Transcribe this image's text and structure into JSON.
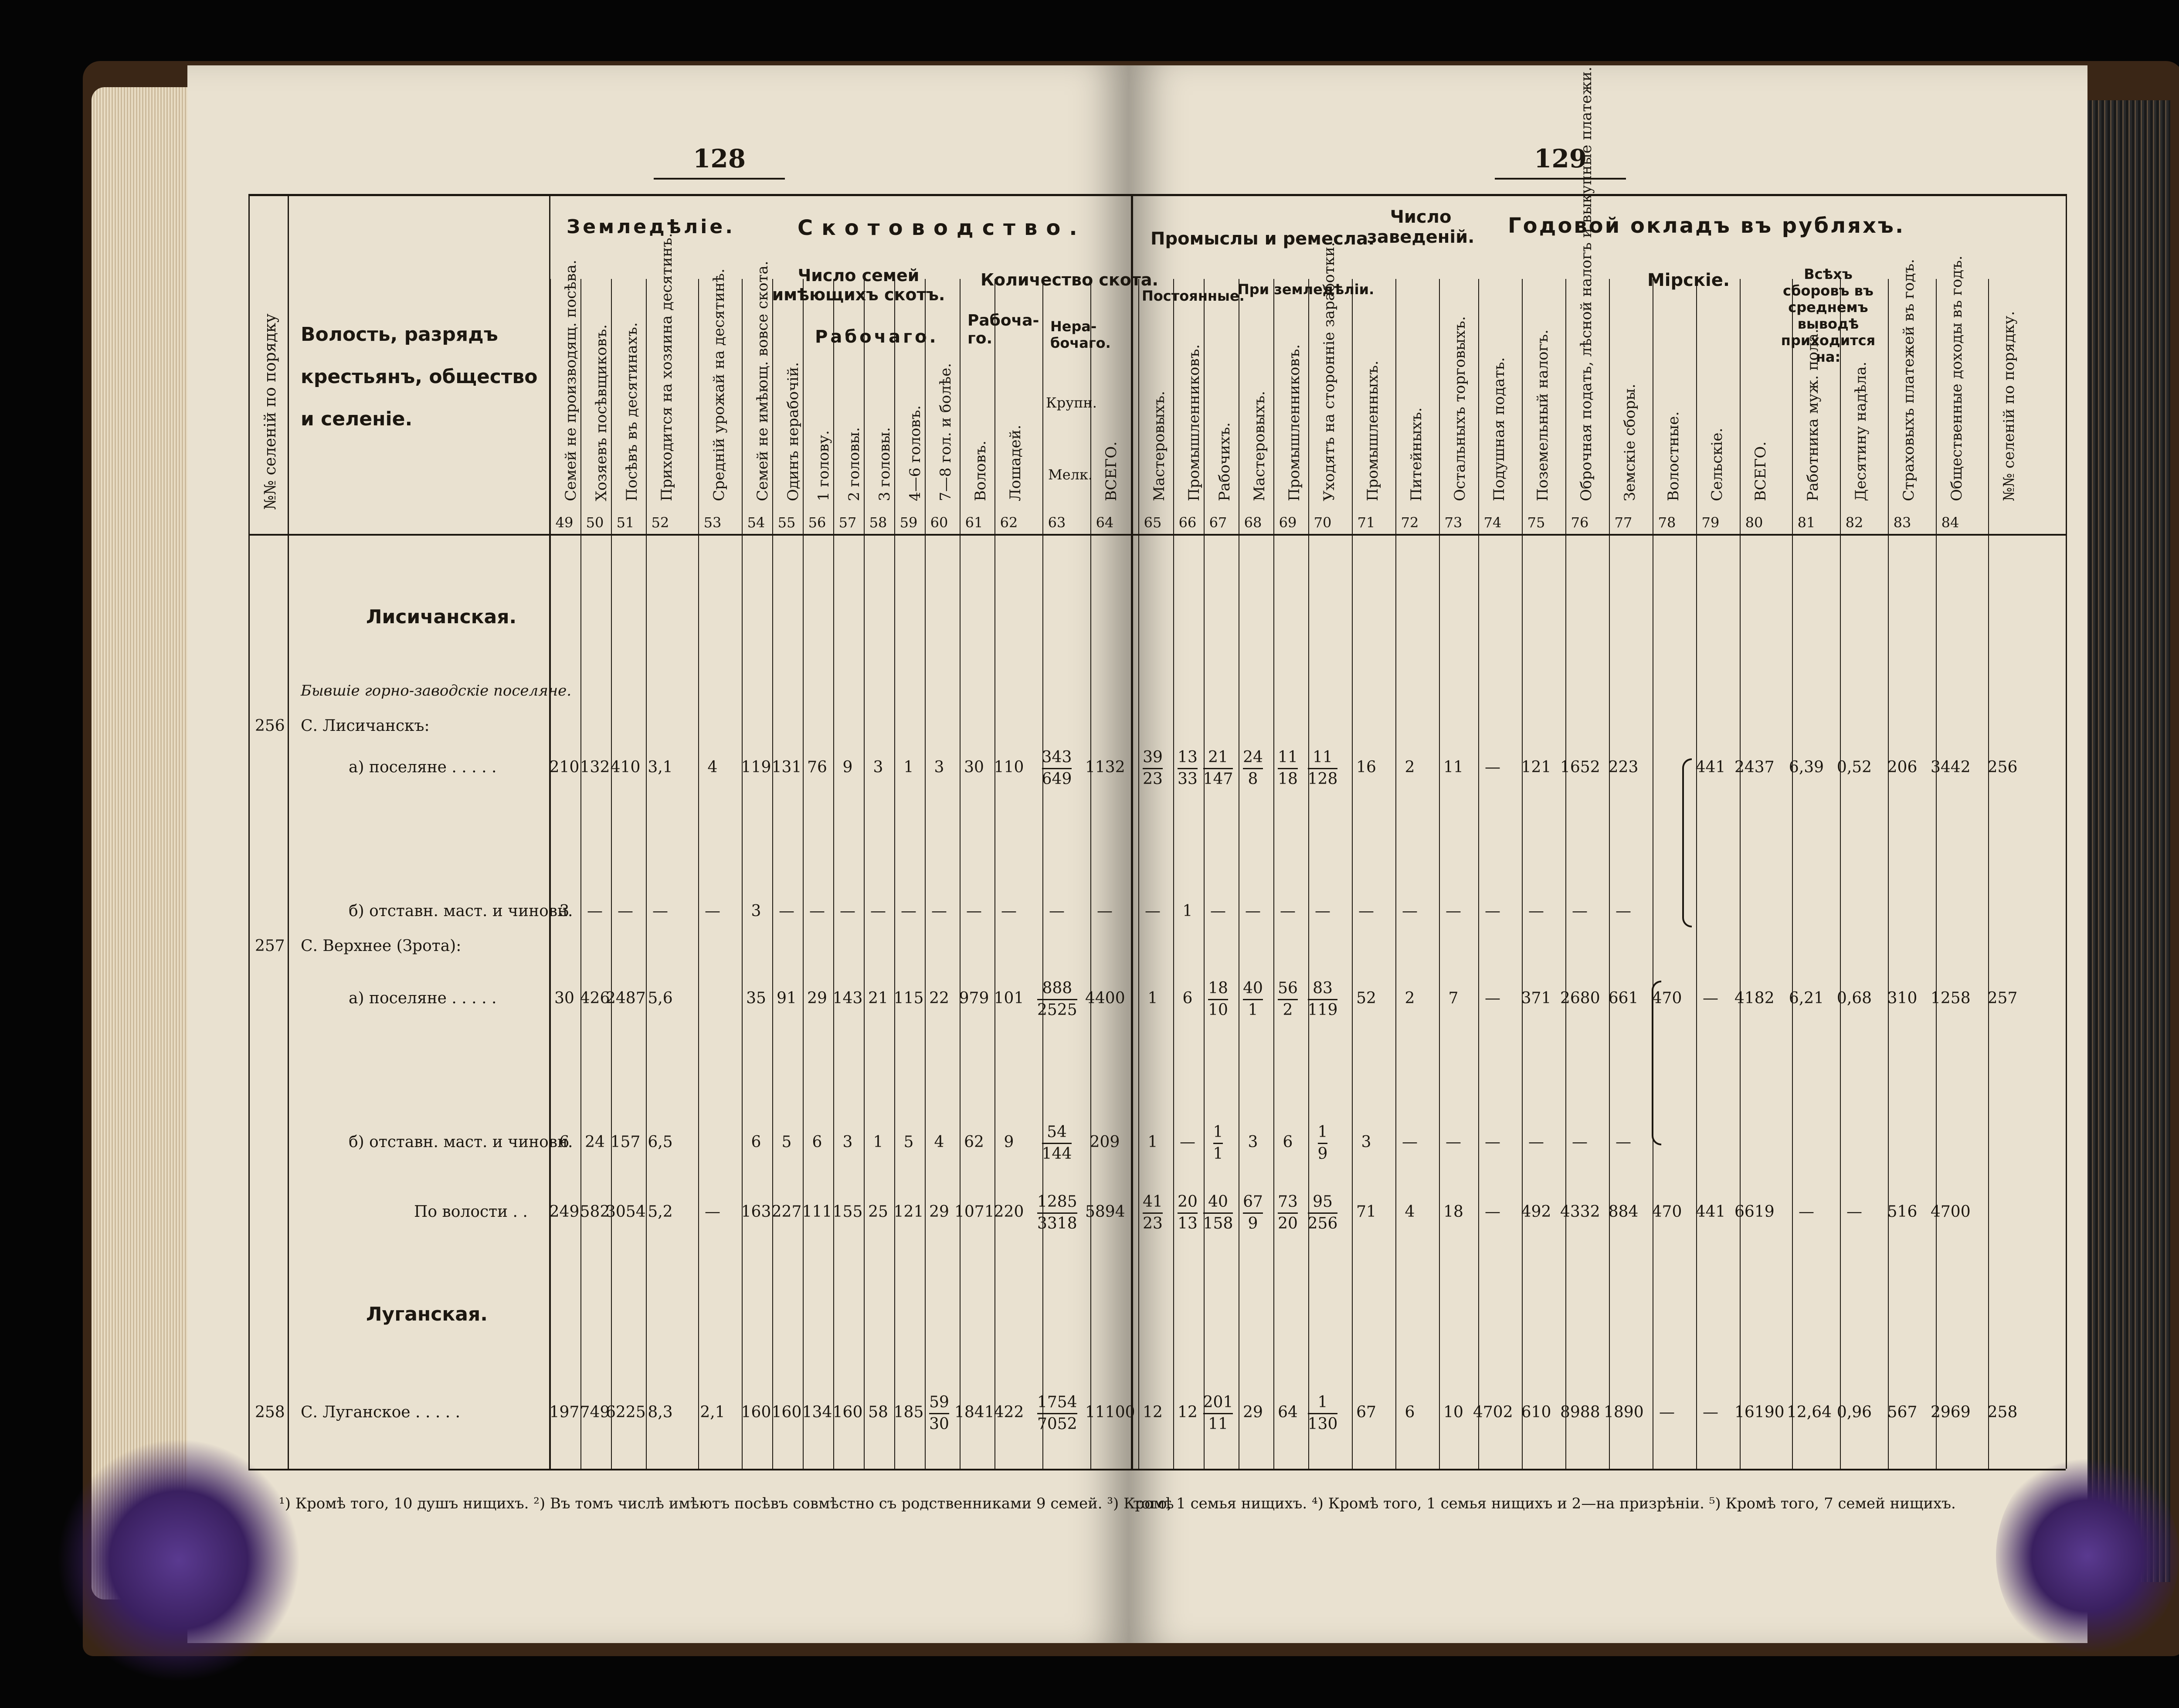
{
  "page_numbers": {
    "left": "128",
    "right": "129"
  },
  "group_headers": {
    "farming": "Земледѣліе.",
    "cattle": "Скотоводство.",
    "families_with_cattle": "Число семей имѣющихъ скотъ.",
    "working": "Рабочаго.",
    "cattle_count": "Количество скота.",
    "working_short": "Рабоча-го.",
    "nonworking": "Нера-бочаго.",
    "large": "Крупн.",
    "small": "Мелк.",
    "trades": "Промыслы и ремесла.",
    "permanent": "Постоянные.",
    "at_farming": "При земледѣліи.",
    "establishments": "Число заведеній.",
    "annual_tax": "Годовой окладъ въ рубляхъ.",
    "worldly": "Мірскіе.",
    "all_fees": "Всѣхъ сборовъ въ среднемъ выводѣ приходится на:"
  },
  "row_label_header": "Волость, разрядъ крестьянъ, общество и селеніе.",
  "column_headers_left": [
    {
      "n": "",
      "label": "№№ селеній по порядку"
    },
    {
      "n": "49",
      "label": "Семей не производящ. посѣва."
    },
    {
      "n": "50",
      "label": "Хозяевъ посѣвщиковъ."
    },
    {
      "n": "51",
      "label": "Посѣвъ въ десятинахъ."
    },
    {
      "n": "52",
      "label": "Приходится на хозяина десятинъ."
    },
    {
      "n": "53",
      "label": "Средній урожай на десятинѣ."
    },
    {
      "n": "54",
      "label": "Семей не имѣющ. вовсе скота."
    },
    {
      "n": "55",
      "label": "Одинъ нерабочій."
    },
    {
      "n": "56",
      "label": "1 голову."
    },
    {
      "n": "57",
      "label": "2 головы."
    },
    {
      "n": "58",
      "label": "3 головы."
    },
    {
      "n": "59",
      "label": "4—6 головъ."
    },
    {
      "n": "60",
      "label": "7—8 гол. и болѣе."
    },
    {
      "n": "61",
      "label": "Воловъ."
    },
    {
      "n": "62",
      "label": "Лошадей."
    },
    {
      "n": "63",
      "label": ""
    },
    {
      "n": "64",
      "label": "ВСЕГО."
    }
  ],
  "column_headers_right": [
    {
      "n": "65",
      "label": "Мастеровыхъ."
    },
    {
      "n": "66",
      "label": "Промышленниковъ."
    },
    {
      "n": "67",
      "label": "Рабочихъ."
    },
    {
      "n": "68",
      "label": "Мастеровыхъ."
    },
    {
      "n": "69",
      "label": "Промышленниковъ."
    },
    {
      "n": "70",
      "label": "Уходятъ на сторонніе заработки."
    },
    {
      "n": "71",
      "label": "Промышленныхъ."
    },
    {
      "n": "72",
      "label": "Питейныхъ."
    },
    {
      "n": "73",
      "label": "Остальныхъ торговыхъ."
    },
    {
      "n": "74",
      "label": "Подушная подать."
    },
    {
      "n": "75",
      "label": "Поземельный налогъ."
    },
    {
      "n": "76",
      "label": "Оброчная подать, лѣсной налогъ и выкупные платежи."
    },
    {
      "n": "77",
      "label": "Земскіе сборы."
    },
    {
      "n": "78",
      "label": "Волостные."
    },
    {
      "n": "79",
      "label": "Сельскіе."
    },
    {
      "n": "80",
      "label": "ВСЕГО."
    },
    {
      "n": "81",
      "label": "Работника муж. пола."
    },
    {
      "n": "82",
      "label": "Десятину надѣла."
    },
    {
      "n": "83",
      "label": "Страховыхъ платежей въ годъ."
    },
    {
      "n": "84",
      "label": "Общественные доходы въ годъ."
    },
    {
      "n": "",
      "label": "№№ селеній по порядку."
    }
  ],
  "sections": {
    "lisichanskaya": "Лисичанская.",
    "former": "Бывшіе горно-заводскіе поселяне.",
    "luganskaya": "Луганская."
  },
  "rows": [
    {
      "num": "256",
      "label": "С. Лисичанскъ:",
      "left": [],
      "right": []
    },
    {
      "num": "",
      "label": "а) поселяне . . . . .",
      "left": [
        "210",
        "132",
        "410",
        "3,1",
        "4",
        "119",
        "131",
        "76",
        "9",
        "3",
        "1",
        "3",
        "30",
        "110",
        "343/649",
        "1132"
      ],
      "right": [
        "39/23",
        "13/33",
        "21/147",
        "24/8",
        "11/18",
        "11/128",
        "16",
        "2",
        "11",
        "—",
        "121",
        "1652",
        "223",
        "",
        "441",
        "2437",
        "6,39",
        "0,52",
        "206",
        "3442",
        "256"
      ]
    },
    {
      "num": "",
      "label": "б) отставн. маст. и чиновн.",
      "left": [
        "3",
        "—",
        "—",
        "—",
        "—",
        "3",
        "—",
        "—",
        "—",
        "—",
        "—",
        "—",
        "—",
        "—",
        "—",
        "—"
      ],
      "right": [
        "—",
        "1",
        "—",
        "—",
        "—",
        "—",
        "—",
        "—",
        "—",
        "—",
        "—",
        "—",
        "—"
      ]
    },
    {
      "num": "257",
      "label": "С. Верхнее (Зрота):",
      "left": [],
      "right": []
    },
    {
      "num": "",
      "label": "а) поселяне . . . . .",
      "left": [
        "30",
        "426",
        "2487",
        "5,6",
        "",
        "35",
        "91",
        "29",
        "143",
        "21",
        "115",
        "22",
        "979",
        "101",
        "888/2525",
        "4400"
      ],
      "right": [
        "1",
        "6",
        "18/10",
        "40/1",
        "56/2",
        "83/119",
        "52",
        "2",
        "7",
        "—",
        "371",
        "2680",
        "661",
        "470",
        "—",
        "4182",
        "6,21",
        "0,68",
        "310",
        "1258",
        "257"
      ]
    },
    {
      "num": "",
      "label": "б) отставн. маст. и чиновн.",
      "left": [
        "6",
        "24",
        "157",
        "6,5",
        "",
        "6",
        "5",
        "6",
        "3",
        "1",
        "5",
        "4",
        "62",
        "9",
        "54/144",
        "209"
      ],
      "right": [
        "1",
        "—",
        "1/1",
        "3",
        "6",
        "1/9",
        "3",
        "—",
        "—",
        "—",
        "—",
        "—",
        "—"
      ]
    },
    {
      "num": "",
      "label": "По волости . .",
      "left": [
        "249",
        "582",
        "3054",
        "5,2",
        "—",
        "163",
        "227",
        "111",
        "155",
        "25",
        "121",
        "29",
        "1071",
        "220",
        "1285/3318",
        "5894"
      ],
      "right": [
        "41/23",
        "20/13",
        "40/158",
        "67/9",
        "73/20",
        "95/256",
        "71",
        "4",
        "18",
        "—",
        "492",
        "4332",
        "884",
        "470",
        "441",
        "6619",
        "—",
        "—",
        "516",
        "4700"
      ]
    },
    {
      "num": "258",
      "label": "С. Луганское . . . . .",
      "left": [
        "197",
        "749",
        "6225",
        "8,3",
        "2,1",
        "160",
        "160",
        "134",
        "160",
        "58",
        "185",
        "59/30",
        "1841",
        "422",
        "1754/7052",
        "11100"
      ],
      "right": [
        "12",
        "12",
        "201/11",
        "29",
        "64",
        "1/130",
        "67",
        "6",
        "10",
        "4702",
        "610",
        "8988",
        "1890",
        "—",
        "—",
        "16190",
        "12,64",
        "0,96",
        "567",
        "2969",
        "258"
      ]
    }
  ],
  "footnotes": {
    "left": "¹) Кромѣ того, 10 душъ нищихъ. ²) Въ томъ числѣ имѣютъ посѣвъ совмѣстно съ родственниками 9 семей. ³) Кромѣ",
    "right": "того, 1 семья нищихъ. ⁴) Кромѣ того, 1 семья нищихъ и 2—на призрѣніи. ⁵) Кромѣ того, 7 семей нищихъ."
  },
  "colors": {
    "paper": "#e9e1d0",
    "ink": "#1c1710",
    "stain": "#3a2060",
    "background": "#050505"
  }
}
